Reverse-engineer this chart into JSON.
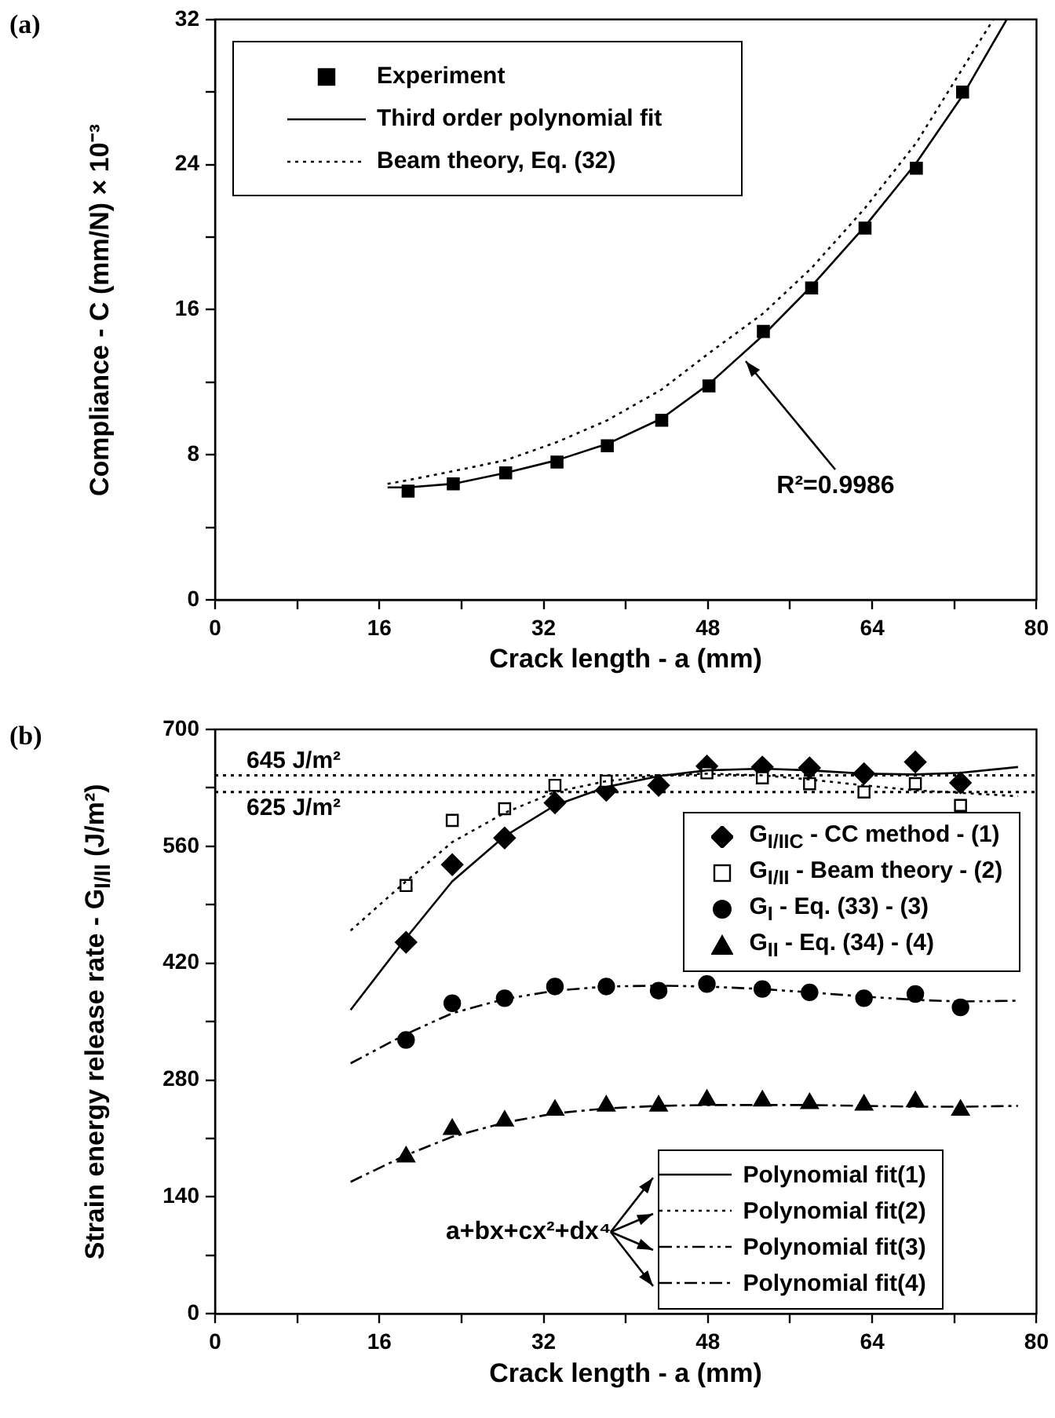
{
  "chart_data": [
    {
      "type": "scatter",
      "xlabel": "Crack length - a (mm)",
      "ylabel": "Compliance - C (mm/N) × 10⁻³",
      "xlim": [
        0,
        80
      ],
      "ylim": [
        0,
        32
      ],
      "xticks": [
        0,
        {
          "value": 8,
          "label": null
        },
        16,
        {
          "value": 24,
          "label": null
        },
        32,
        {
          "value": 40,
          "label": null
        },
        48,
        {
          "value": 56,
          "label": null
        },
        64,
        {
          "value": 72,
          "label": null
        },
        80
      ],
      "yticks": [
        0,
        {
          "value": 4,
          "label": null
        },
        8,
        {
          "value": 12,
          "label": null
        },
        16,
        {
          "value": 20,
          "label": null
        },
        24,
        {
          "value": 28,
          "label": null
        },
        32
      ],
      "grid": false,
      "legend": "top left",
      "annotations": [
        "(a)",
        {
          "text": "R²=0.9986",
          "x": 51.4,
          "y": 13.3
        }
      ],
      "series": [
        {
          "name": "Experiment",
          "type": "scatter",
          "marker": "square",
          "color": "#000000",
          "x": [
            18.8,
            23.2,
            28.3,
            33.3,
            38.2,
            43.5,
            48.1,
            53.4,
            58.1,
            63.3,
            68.3,
            72.8
          ],
          "values": [
            6.0,
            6.4,
            7.0,
            7.6,
            8.5,
            9.9,
            11.8,
            14.8,
            17.2,
            20.5,
            23.8,
            28.0
          ]
        },
        {
          "name": "Third order polynomial fit",
          "type": "line",
          "line_style": "solid",
          "color": "#000000",
          "x": [
            16.8,
            18.8,
            23.2,
            28.3,
            33.3,
            38.2,
            43.5,
            48.1,
            53.4,
            58.1,
            63.3,
            68.3,
            72.8,
            77.1
          ],
          "values": [
            6.2,
            6.2,
            6.4,
            7.0,
            7.7,
            8.6,
            10.0,
            11.9,
            14.6,
            17.3,
            20.6,
            24.1,
            27.8,
            32
          ]
        },
        {
          "name": "Beam theory, Eq. (32)",
          "type": "line",
          "line_style": "dotted",
          "color": "#000000",
          "x": [
            16.8,
            18.8,
            23.2,
            28.3,
            33.3,
            38.2,
            43.5,
            48.1,
            53.4,
            58.1,
            63.3,
            68.3,
            72.8,
            75.8
          ],
          "values": [
            6.4,
            6.6,
            7.1,
            7.7,
            8.7,
            9.9,
            11.6,
            13.6,
            15.8,
            18.3,
            21.6,
            25.2,
            29.3,
            32
          ]
        }
      ]
    },
    {
      "type": "scatter",
      "xlabel": "Crack length - a (mm)",
      "ylabel": "Strain energy release rate - G$_{I/II}$ (J/m²)",
      "xlim": [
        0,
        80
      ],
      "ylim": [
        0,
        700
      ],
      "xticks": [
        0,
        {
          "value": 8,
          "label": null
        },
        16,
        {
          "value": 24,
          "label": null
        },
        32,
        {
          "value": 40,
          "label": null
        },
        48,
        {
          "value": 56,
          "label": null
        },
        64,
        {
          "value": 72,
          "label": null
        },
        80
      ],
      "yticks": [
        0,
        {
          "value": 70,
          "label": null
        },
        140,
        {
          "value": 210,
          "label": null
        },
        280,
        {
          "value": 350,
          "label": null
        },
        420,
        {
          "value": 490,
          "label": null
        },
        560,
        {
          "value": 630,
          "label": null
        },
        700
      ],
      "grid": false,
      "legend": "right",
      "annotations": [
        "(b)",
        "a+bx+cx²+dx⁴"
      ],
      "ref_lines": [
        {
          "axis": "y",
          "value": 645,
          "label": "645 J/m²",
          "line_style": "dotted",
          "color": "#000000"
        },
        {
          "axis": "y",
          "value": 625,
          "label": "625 J/m²",
          "line_style": "dotted",
          "color": "#000000"
        }
      ],
      "series": [
        {
          "name": "G$_{I/IIC}$ - CC method - (1)",
          "type": "scatter",
          "marker": "diamond",
          "color": "#000000",
          "x": [
            18.6,
            23.1,
            28.2,
            33.1,
            38.1,
            43.2,
            47.9,
            53.3,
            57.9,
            63.2,
            68.2,
            72.6
          ],
          "values": [
            445,
            538,
            570,
            612,
            627,
            633,
            656,
            655,
            654,
            647,
            661,
            636
          ]
        },
        {
          "name": "G$_{I/II}$ - Beam theory - (2)",
          "type": "scatter",
          "marker": "square",
          "color": "#ffffff",
          "x": [
            18.6,
            23.1,
            28.2,
            33.1,
            38.1,
            43.2,
            47.9,
            53.3,
            57.9,
            63.2,
            68.2,
            72.6
          ],
          "values": [
            513,
            591,
            605,
            633,
            638,
            null,
            648,
            642,
            635,
            625,
            635,
            609
          ]
        },
        {
          "name": "G$_{I}$ - Eq. (33) - (3)",
          "type": "scatter",
          "marker": "circle",
          "color": "#000000",
          "x": [
            18.6,
            23.1,
            28.2,
            33.1,
            38.1,
            43.2,
            47.9,
            53.3,
            57.9,
            63.2,
            68.2,
            72.6
          ],
          "values": [
            328,
            372,
            378,
            392,
            392,
            387,
            395,
            389,
            385,
            378,
            383,
            367
          ]
        },
        {
          "name": "G$_{II}$ - Eq. (34) - (4)",
          "type": "scatter",
          "marker": "triangle",
          "color": "#000000",
          "x": [
            18.6,
            23.1,
            28.2,
            33.1,
            38.1,
            43.2,
            47.9,
            53.3,
            57.9,
            63.2,
            68.2,
            72.6
          ],
          "values": [
            188,
            221,
            231,
            244,
            249,
            249,
            256,
            255,
            252,
            250,
            254,
            244
          ]
        },
        {
          "name": "Polynomial fit(1)",
          "type": "line",
          "line_style": "solid",
          "color": "#000000",
          "x": [
            13.2,
            18.6,
            23.1,
            28.2,
            33.1,
            38.1,
            43.2,
            47.9,
            53.3,
            57.9,
            63.2,
            68.2,
            72.6,
            78.2
          ],
          "values": [
            364,
            450,
            518,
            572,
            609,
            631,
            644,
            651,
            653,
            651,
            647,
            646,
            648,
            655
          ]
        },
        {
          "name": "Polynomial fit(2)",
          "type": "line",
          "line_style": "dotted",
          "color": "#000000",
          "x": [
            13.2,
            18.6,
            23.1,
            28.2,
            33.1,
            38.1,
            43.2,
            47.9,
            53.3,
            57.9,
            63.2,
            68.2,
            72.6,
            78.2
          ],
          "values": [
            459,
            518,
            565,
            600,
            625,
            638,
            645,
            647,
            645,
            640,
            633,
            627,
            624,
            620
          ]
        },
        {
          "name": "Polynomial fit(3)",
          "type": "line",
          "line_style": "dashdotdot",
          "color": "#000000",
          "x": [
            13.2,
            18.6,
            23.1,
            28.2,
            33.1,
            38.1,
            43.2,
            47.9,
            53.3,
            57.9,
            63.2,
            68.2,
            72.6,
            78.2
          ],
          "values": [
            300,
            335,
            360,
            377,
            387,
            392,
            393,
            392,
            389,
            385,
            380,
            376,
            374,
            375
          ]
        },
        {
          "name": "Polynomial fit(4)",
          "type": "line",
          "line_style": "dashdot",
          "color": "#000000",
          "x": [
            13.2,
            18.6,
            23.1,
            28.2,
            33.1,
            38.1,
            43.2,
            47.9,
            53.3,
            57.9,
            63.2,
            68.2,
            72.6,
            78.2
          ],
          "values": [
            158,
            190,
            212,
            229,
            240,
            246,
            249,
            250,
            250,
            250,
            249,
            248,
            248,
            249
          ]
        }
      ]
    }
  ]
}
